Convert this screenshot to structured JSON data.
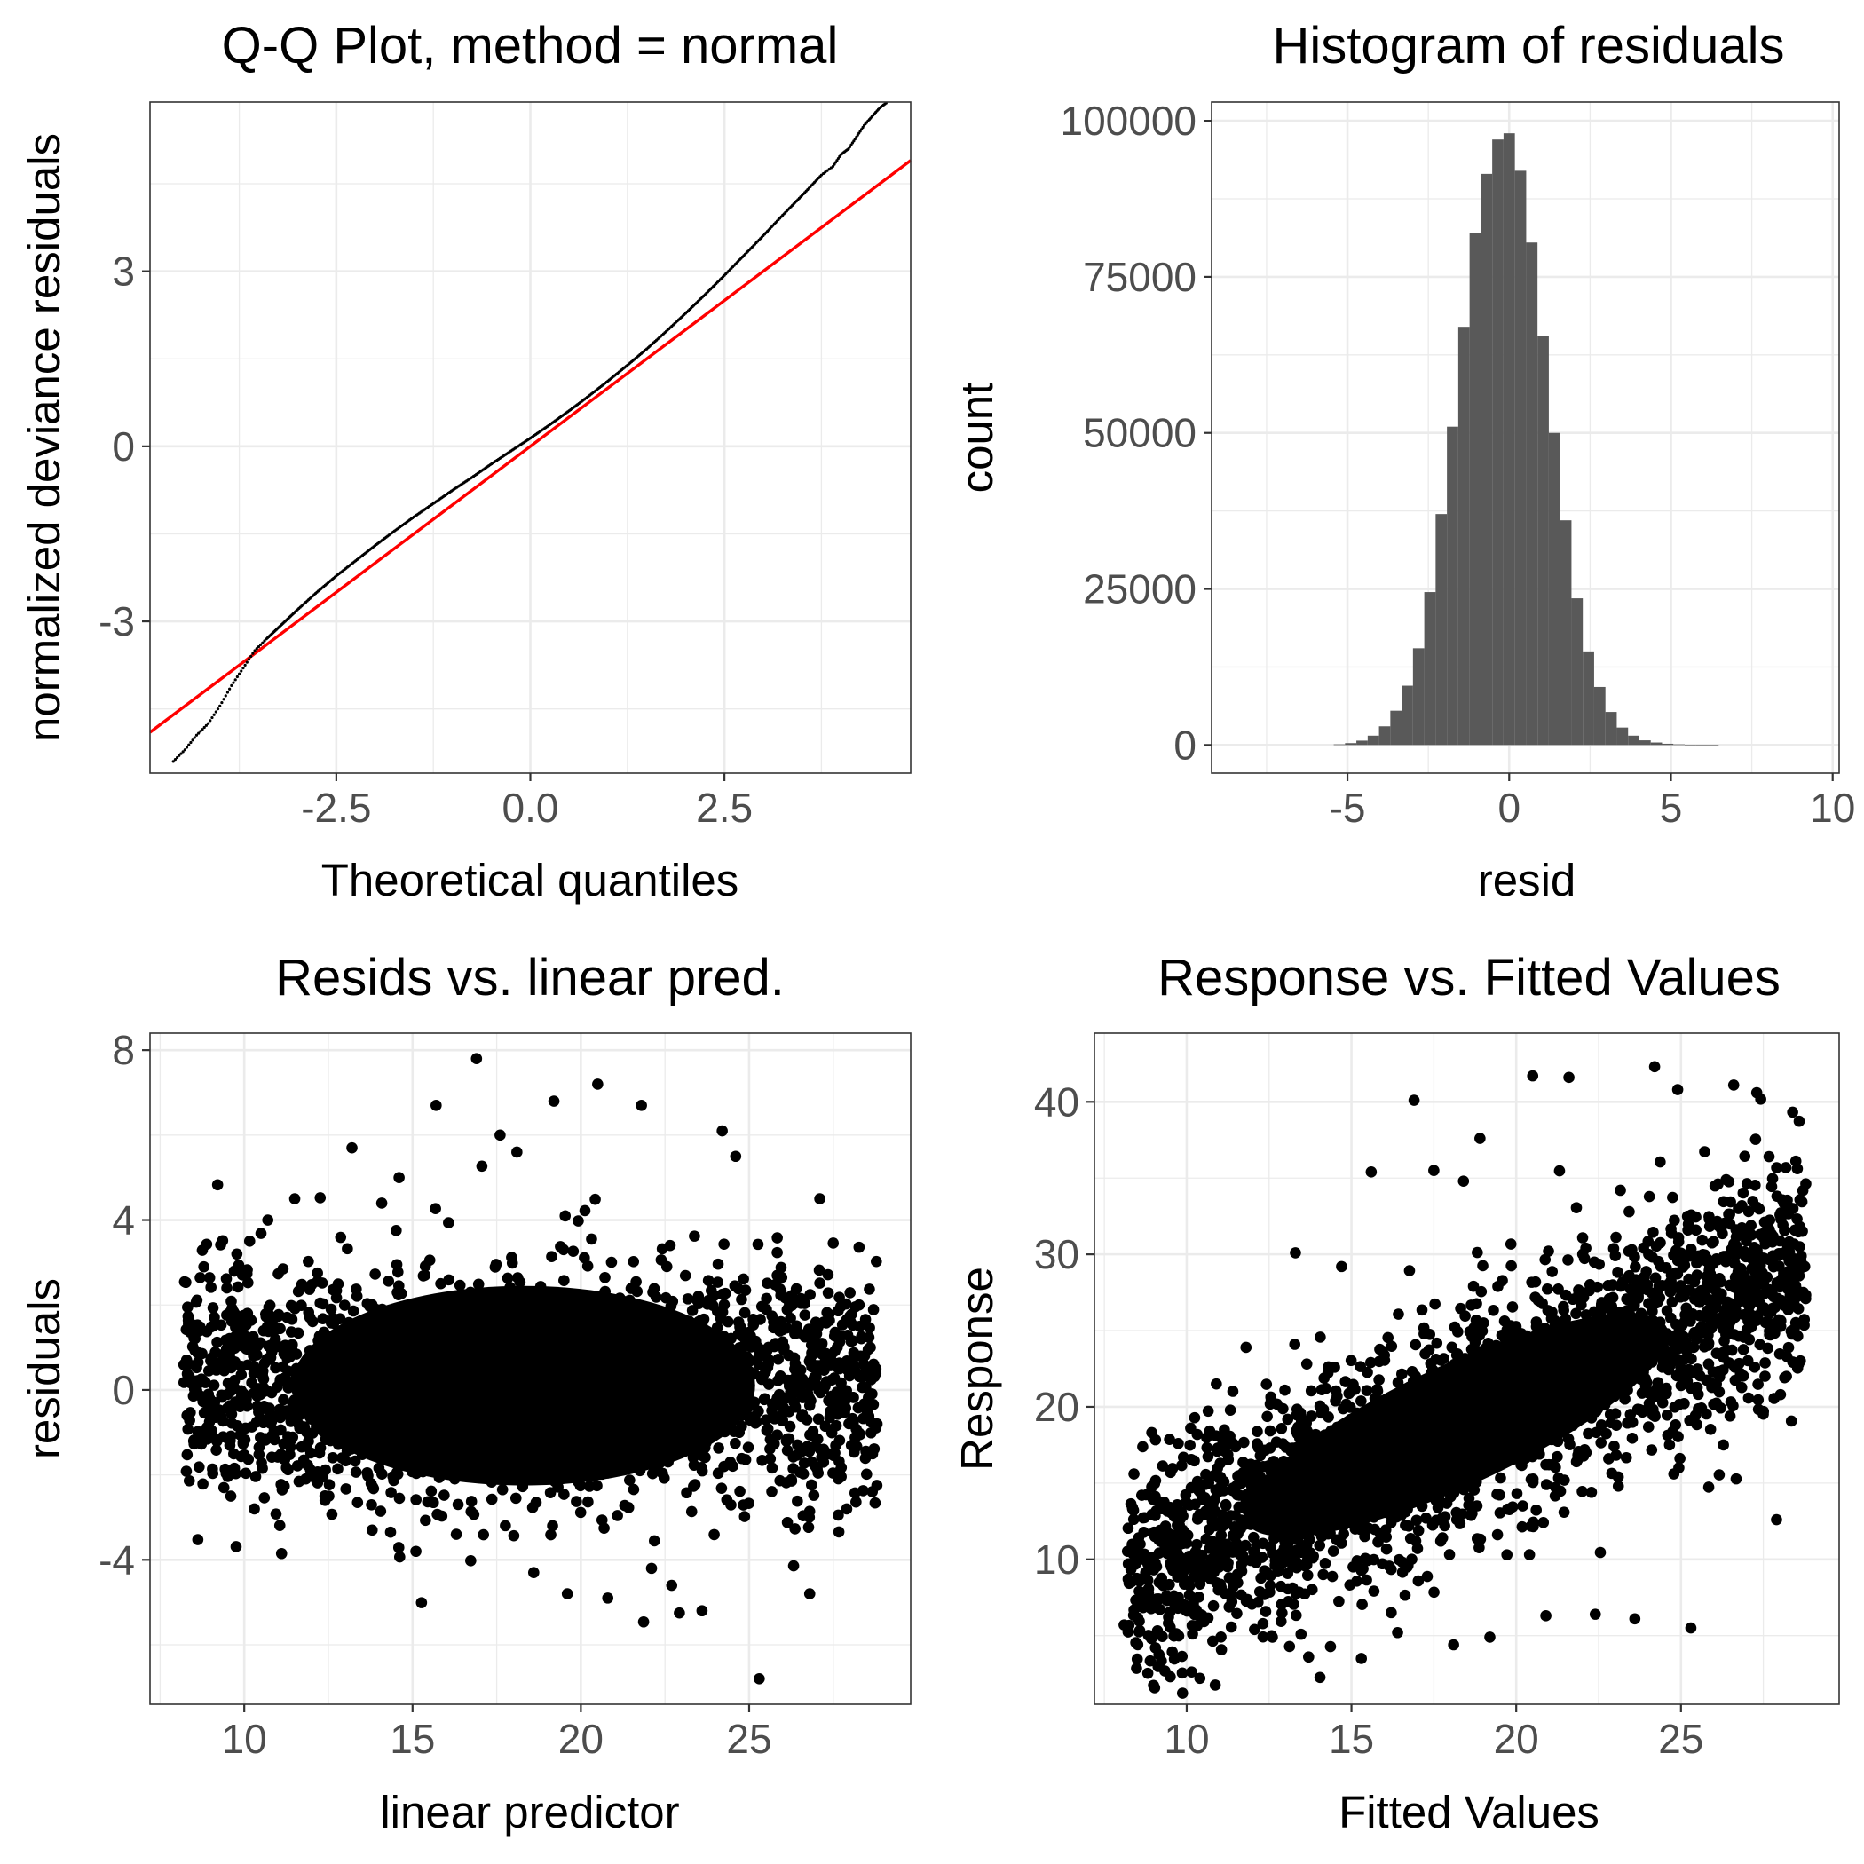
{
  "chart_data": [
    {
      "type": "scatter",
      "title": "Q-Q Plot, method = normal",
      "xlabel": "Theoretical quantiles",
      "ylabel": "normalized deviance residuals",
      "xlim": [
        -4.9,
        4.9
      ],
      "ylim": [
        -5.6,
        5.9
      ],
      "x_ticks": [
        -2.5,
        0.0,
        2.5
      ],
      "x_tick_labels": [
        "-2.5",
        "0.0",
        "2.5"
      ],
      "y_ticks": [
        -3,
        0,
        3
      ],
      "y_tick_labels": [
        "-3",
        "0",
        "3"
      ],
      "grid": true,
      "series": [
        {
          "kind": "points",
          "color": "#000000",
          "x": [
            -4.6,
            -4.45,
            -4.3,
            -4.15,
            -4.0,
            -3.85,
            -3.7,
            -3.55,
            -3.4,
            -3.2,
            -3.0,
            -2.75,
            -2.5,
            -2.25,
            -2.0,
            -1.75,
            -1.5,
            -1.25,
            -1.0,
            -0.75,
            -0.5,
            -0.25,
            0.0,
            0.25,
            0.5,
            0.75,
            1.0,
            1.25,
            1.5,
            1.75,
            2.0,
            2.25,
            2.5,
            2.75,
            3.0,
            3.25,
            3.5,
            3.75,
            3.9,
            4.0,
            4.1,
            4.2,
            4.3,
            4.4,
            4.5,
            4.6
          ],
          "y": [
            -5.4,
            -5.2,
            -4.95,
            -4.75,
            -4.45,
            -4.1,
            -3.8,
            -3.5,
            -3.3,
            -3.05,
            -2.8,
            -2.5,
            -2.22,
            -1.96,
            -1.7,
            -1.45,
            -1.21,
            -0.98,
            -0.75,
            -0.53,
            -0.3,
            -0.08,
            0.14,
            0.37,
            0.61,
            0.86,
            1.12,
            1.39,
            1.67,
            1.97,
            2.28,
            2.6,
            2.93,
            3.27,
            3.61,
            3.96,
            4.3,
            4.65,
            4.8,
            5.0,
            5.1,
            5.3,
            5.5,
            5.65,
            5.8,
            5.9
          ]
        },
        {
          "kind": "reference-line",
          "color": "#ff0000",
          "x": [
            -4.9,
            4.9
          ],
          "y": [
            -4.9,
            4.9
          ]
        }
      ]
    },
    {
      "type": "bar",
      "title": "Histogram of residuals",
      "xlabel": "resid",
      "ylabel": "count",
      "xlim": [
        -9.2,
        10.2
      ],
      "ylim": [
        -4500,
        103000
      ],
      "x_ticks": [
        -5,
        0,
        5,
        10
      ],
      "x_tick_labels": [
        "-5",
        "0",
        "5",
        "10"
      ],
      "y_ticks": [
        0,
        25000,
        50000,
        75000,
        100000
      ],
      "y_tick_labels": [
        "0",
        "25000",
        "50000",
        "75000",
        "100000"
      ],
      "grid": true,
      "bar_color": "#595959",
      "bin_width": 0.35,
      "bin_centers": [
        -5.25,
        -4.9,
        -4.55,
        -4.2,
        -3.85,
        -3.5,
        -3.15,
        -2.8,
        -2.45,
        -2.1,
        -1.75,
        -1.4,
        -1.05,
        -0.7,
        -0.35,
        0.0,
        0.35,
        0.7,
        1.05,
        1.4,
        1.75,
        2.1,
        2.45,
        2.8,
        3.15,
        3.5,
        3.85,
        4.2,
        4.55,
        4.9,
        5.25,
        5.6,
        5.95,
        6.3
      ],
      "values": [
        100,
        300,
        700,
        1500,
        3000,
        5500,
        9500,
        15500,
        24500,
        37000,
        51000,
        67000,
        82000,
        91500,
        97000,
        98000,
        92000,
        80500,
        65500,
        50000,
        36000,
        23500,
        15000,
        9300,
        5300,
        2800,
        1500,
        750,
        400,
        200,
        100,
        50,
        25,
        10
      ]
    },
    {
      "type": "scatter",
      "title": "Resids vs. linear pred.",
      "xlabel": "linear predictor",
      "ylabel": "residuals",
      "xlim": [
        7.2,
        29.8
      ],
      "ylim": [
        -7.4,
        8.4
      ],
      "x_ticks": [
        10,
        15,
        20,
        25
      ],
      "x_tick_labels": [
        "10",
        "15",
        "20",
        "25"
      ],
      "y_ticks": [
        -4,
        0,
        4,
        8
      ],
      "y_tick_labels": [
        "-4",
        "0",
        "4",
        "8"
      ],
      "grid": true,
      "point_color": "#000000",
      "points": [
        [
          8.3,
          -0.6
        ],
        [
          8.8,
          2.9
        ],
        [
          9.6,
          -2.5
        ],
        [
          10.3,
          -2.8
        ],
        [
          10.7,
          4.0
        ],
        [
          11.5,
          4.5
        ],
        [
          12.4,
          -2.6
        ],
        [
          13.2,
          5.7
        ],
        [
          13.8,
          -3.3
        ],
        [
          14.6,
          5.0
        ],
        [
          15.1,
          -3.8
        ],
        [
          15.7,
          6.7
        ],
        [
          16.3,
          -3.4
        ],
        [
          16.9,
          7.8
        ],
        [
          17.6,
          6.0
        ],
        [
          18.1,
          5.6
        ],
        [
          18.6,
          -4.3
        ],
        [
          19.2,
          6.8
        ],
        [
          19.6,
          -4.8
        ],
        [
          20.5,
          7.2
        ],
        [
          20.8,
          -4.9
        ],
        [
          21.8,
          6.7
        ],
        [
          22.1,
          -4.2
        ],
        [
          22.7,
          -4.6
        ],
        [
          23.6,
          -5.2
        ],
        [
          24.2,
          6.1
        ],
        [
          24.6,
          5.5
        ],
        [
          25.3,
          -6.8
        ],
        [
          26.8,
          -4.8
        ],
        [
          27.1,
          4.5
        ],
        [
          27.9,
          -2.8
        ],
        [
          28.6,
          1.0
        ],
        [
          28.8,
          -0.8
        ]
      ]
    },
    {
      "type": "scatter",
      "title": "Response vs. Fitted Values",
      "xlabel": "Fitted Values",
      "ylabel": "Response",
      "xlim": [
        7.2,
        29.8
      ],
      "ylim": [
        0.5,
        44.5
      ],
      "x_ticks": [
        10,
        15,
        20,
        25
      ],
      "x_tick_labels": [
        "10",
        "15",
        "20",
        "25"
      ],
      "y_ticks": [
        10,
        20,
        30,
        40
      ],
      "y_tick_labels": [
        "10",
        "20",
        "30",
        "40"
      ],
      "grid": true,
      "point_color": "#000000",
      "points": [
        [
          8.1,
          5.7
        ],
        [
          8.4,
          15.6
        ],
        [
          9.5,
          2.3
        ],
        [
          10.4,
          2.2
        ],
        [
          10.9,
          21.5
        ],
        [
          11.8,
          23.9
        ],
        [
          12.6,
          4.9
        ],
        [
          13.3,
          30.1
        ],
        [
          13.7,
          3.6
        ],
        [
          14.7,
          29.2
        ],
        [
          15.3,
          3.5
        ],
        [
          15.6,
          35.4
        ],
        [
          16.4,
          5.2
        ],
        [
          16.9,
          40.1
        ],
        [
          17.5,
          35.5
        ],
        [
          18.1,
          4.4
        ],
        [
          18.4,
          34.8
        ],
        [
          18.9,
          37.6
        ],
        [
          19.2,
          4.9
        ],
        [
          20.5,
          41.7
        ],
        [
          20.9,
          6.3
        ],
        [
          21.6,
          41.6
        ],
        [
          22.4,
          6.4
        ],
        [
          23.6,
          6.1
        ],
        [
          24.2,
          42.3
        ],
        [
          24.9,
          40.8
        ],
        [
          25.3,
          5.5
        ],
        [
          26.6,
          41.1
        ],
        [
          27.3,
          40.6
        ],
        [
          27.9,
          12.6
        ],
        [
          28.4,
          33.0
        ],
        [
          28.6,
          30.5
        ]
      ]
    }
  ]
}
